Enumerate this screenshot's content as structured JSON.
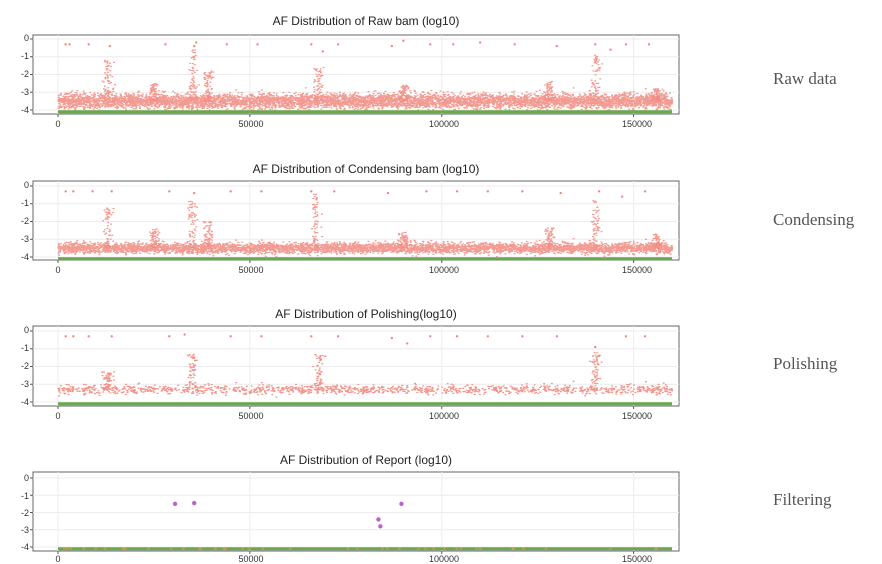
{
  "colors": {
    "variant_points": "#f08a80",
    "baseline_band": "#6aa84f",
    "report_points": "#c060d0",
    "report_band_accent": "#d9a441",
    "panel_border": "#666666",
    "gridline": "#ececec"
  },
  "chart_data": [
    {
      "type": "scatter",
      "title": "AF Distribution of Raw bam (log10)",
      "side_label": "Raw data",
      "xlim": [
        0,
        160000
      ],
      "ylim": [
        -4.2,
        0.2
      ],
      "x_ticks": [
        0,
        50000,
        100000,
        150000
      ],
      "x_tick_labels": [
        "0",
        "50000",
        "100000",
        "150000"
      ],
      "y_ticks": [
        0,
        -1,
        -2,
        -3,
        -4
      ],
      "y_tick_labels": [
        "0",
        "-1",
        "-2",
        "-3",
        "-4"
      ],
      "grid": true,
      "density": "very dense",
      "band_center": -3.5,
      "band_spread": 0.35,
      "spikes": [
        {
          "x": 13000,
          "top": -1.2
        },
        {
          "x": 25000,
          "top": -2.5
        },
        {
          "x": 35000,
          "top": -0.6
        },
        {
          "x": 39000,
          "top": -1.7
        },
        {
          "x": 68000,
          "top": -1.6
        },
        {
          "x": 90000,
          "top": -2.6
        },
        {
          "x": 128000,
          "top": -2.4
        },
        {
          "x": 140000,
          "top": -0.9
        },
        {
          "x": 156000,
          "top": -2.8
        }
      ],
      "series": [
        {
          "values": [
            [
              2000,
              -0.3
            ],
            [
              3000,
              -0.3
            ],
            [
              8000,
              -0.3
            ],
            [
              13500,
              -0.4
            ],
            [
              28000,
              -0.3
            ],
            [
              35500,
              -0.4
            ],
            [
              36000,
              -0.2
            ],
            [
              44000,
              -0.3
            ],
            [
              52000,
              -0.3
            ],
            [
              66000,
              -0.3
            ],
            [
              69000,
              -0.7
            ],
            [
              73000,
              -0.3
            ],
            [
              87000,
              -0.4
            ],
            [
              90000,
              -0.1
            ],
            [
              97000,
              -0.3
            ],
            [
              103000,
              -0.3
            ],
            [
              110000,
              -0.2
            ],
            [
              119000,
              -0.3
            ],
            [
              130000,
              -0.4
            ],
            [
              140000,
              -0.3
            ],
            [
              144000,
              -0.6
            ],
            [
              148000,
              -0.3
            ],
            [
              154000,
              -0.3
            ]
          ]
        },
        {
          "name": "baseline",
          "values": [
            [
              0,
              -4.1
            ],
            [
              160000,
              -4.1
            ]
          ]
        }
      ]
    },
    {
      "type": "scatter",
      "title": "AF Distribution of Condensing bam (log10)",
      "side_label": "Condensing",
      "xlim": [
        0,
        160000
      ],
      "ylim": [
        -4.2,
        0.2
      ],
      "x_ticks": [
        0,
        50000,
        100000,
        150000
      ],
      "x_tick_labels": [
        "0",
        "50000",
        "100000",
        "150000"
      ],
      "y_ticks": [
        0,
        -1,
        -2,
        -3,
        -4
      ],
      "y_tick_labels": [
        "0",
        "-1",
        "-2",
        "-3",
        "-4"
      ],
      "grid": true,
      "density": "dense",
      "band_center": -3.5,
      "band_spread": 0.25,
      "spikes": [
        {
          "x": 13000,
          "top": -1.2
        },
        {
          "x": 25000,
          "top": -2.4
        },
        {
          "x": 35000,
          "top": -0.8
        },
        {
          "x": 39000,
          "top": -2.0
        },
        {
          "x": 67000,
          "top": -0.3
        },
        {
          "x": 90000,
          "top": -2.6
        },
        {
          "x": 128000,
          "top": -2.3
        },
        {
          "x": 140000,
          "top": -0.8
        },
        {
          "x": 156000,
          "top": -2.7
        }
      ],
      "series": [
        {
          "values": [
            [
              2000,
              -0.3
            ],
            [
              4000,
              -0.3
            ],
            [
              9000,
              -0.3
            ],
            [
              14000,
              -0.3
            ],
            [
              29000,
              -0.3
            ],
            [
              35500,
              -0.4
            ],
            [
              45000,
              -0.3
            ],
            [
              53000,
              -0.3
            ],
            [
              66000,
              -0.3
            ],
            [
              72000,
              -0.3
            ],
            [
              86000,
              -0.4
            ],
            [
              96000,
              -0.3
            ],
            [
              104000,
              -0.3
            ],
            [
              112000,
              -0.3
            ],
            [
              121000,
              -0.3
            ],
            [
              131000,
              -0.4
            ],
            [
              141000,
              -0.3
            ],
            [
              147000,
              -0.6
            ],
            [
              153000,
              -0.3
            ]
          ]
        },
        {
          "name": "baseline",
          "values": [
            [
              0,
              -4.1
            ],
            [
              160000,
              -4.1
            ]
          ]
        }
      ]
    },
    {
      "type": "scatter",
      "title": "AF Distribution of Polishing(log10)",
      "side_label": "Polishing",
      "xlim": [
        0,
        160000
      ],
      "ylim": [
        -4.2,
        0.2
      ],
      "x_ticks": [
        0,
        50000,
        100000,
        150000
      ],
      "x_tick_labels": [
        "0",
        "50000",
        "100000",
        "150000"
      ],
      "y_ticks": [
        0,
        -1,
        -2,
        -3,
        -4
      ],
      "y_tick_labels": [
        "0",
        "-1",
        "-2",
        "-3",
        "-4"
      ],
      "grid": true,
      "density": "sparse",
      "band_center": -3.3,
      "band_spread": 0.22,
      "spikes": [
        {
          "x": 13000,
          "top": -2.3
        },
        {
          "x": 35000,
          "top": -1.3
        },
        {
          "x": 68000,
          "top": -1.3
        },
        {
          "x": 140000,
          "top": -1.2
        }
      ],
      "series": [
        {
          "values": [
            [
              2000,
              -0.3
            ],
            [
              4000,
              -0.3
            ],
            [
              8000,
              -0.3
            ],
            [
              14000,
              -0.3
            ],
            [
              29000,
              -0.3
            ],
            [
              33000,
              -0.2
            ],
            [
              35500,
              -1.5
            ],
            [
              45000,
              -0.3
            ],
            [
              53000,
              -0.3
            ],
            [
              66000,
              -0.3
            ],
            [
              68500,
              -1.6
            ],
            [
              73000,
              -0.3
            ],
            [
              87000,
              -0.4
            ],
            [
              91000,
              -0.7
            ],
            [
              97000,
              -0.3
            ],
            [
              104000,
              -0.3
            ],
            [
              112000,
              -0.3
            ],
            [
              121000,
              -0.3
            ],
            [
              130000,
              -0.3
            ],
            [
              140000,
              -0.9
            ],
            [
              141000,
              -1.4
            ],
            [
              148000,
              -0.3
            ],
            [
              153000,
              -0.3
            ]
          ]
        },
        {
          "name": "baseline",
          "values": [
            [
              0,
              -4.1
            ],
            [
              160000,
              -4.1
            ]
          ]
        }
      ]
    },
    {
      "type": "scatter",
      "title": "AF Distribution of Report (log10)",
      "side_label": "Filtering",
      "xlim": [
        0,
        160000
      ],
      "ylim": [
        -4.2,
        0.2
      ],
      "x_ticks": [
        0,
        50000,
        100000,
        150000
      ],
      "x_tick_labels": [
        "0",
        "50000",
        "100000",
        "150000"
      ],
      "y_ticks": [
        0,
        -1,
        -2,
        -3,
        -4
      ],
      "y_tick_labels": [
        "0",
        "-1",
        "-2",
        "-3",
        "-4"
      ],
      "grid": true,
      "density": "none",
      "series": [
        {
          "values": [
            [
              30500,
              -1.5
            ],
            [
              35500,
              -1.45
            ],
            [
              83500,
              -2.4
            ],
            [
              84000,
              -2.8
            ],
            [
              89500,
              -1.5
            ]
          ]
        },
        {
          "name": "baseline",
          "values": [
            [
              0,
              -4.1
            ],
            [
              160000,
              -4.1
            ]
          ]
        }
      ]
    }
  ]
}
